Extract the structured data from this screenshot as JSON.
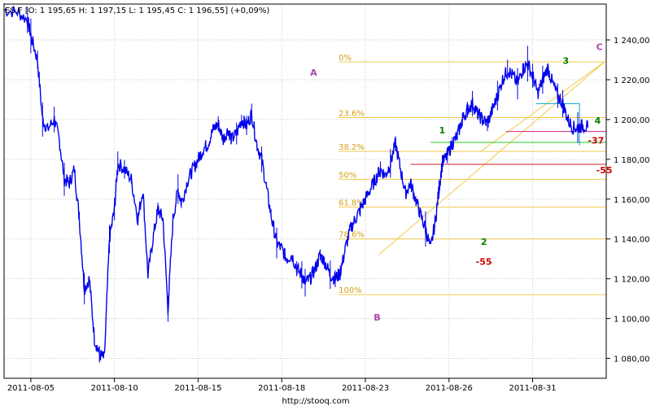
{
  "header": {
    "symbol": "ES.F",
    "text": "ES.F [O: 1 195,65  H: 1 197,15  L: 1 195,45  C: 1 196,55] (+0,09%)"
  },
  "footer": {
    "url": "http://stooq.com"
  },
  "colors": {
    "price": "#0000ee",
    "fib": "#f2c94c",
    "trend": "#f2c94c",
    "wave_green": "#008000",
    "wave_red": "#cc0000",
    "wave_purple": "#aa44aa",
    "green_line": "#22cc22",
    "red_line": "#cc2222",
    "cyan_line": "#00aacc",
    "magenta_line": "#cc2288",
    "grid": "#c8c8c8",
    "axis": "#000000"
  },
  "chart_data": {
    "type": "line",
    "x_axis": {
      "labels": [
        "2011-08-05",
        "2011-08-10",
        "2011-08-15",
        "2011-08-18",
        "2011-08-23",
        "2011-08-26",
        "2011-08-31"
      ]
    },
    "y_axis": {
      "labels": [
        "1 080,00",
        "1 100,00",
        "1 120,00",
        "1 140,00",
        "1 160,00",
        "1 180,00",
        "1 200,00",
        "1 220,00",
        "1 240,00"
      ],
      "values": [
        1080,
        1100,
        1120,
        1140,
        1160,
        1180,
        1200,
        1220,
        1240
      ],
      "ylim": [
        1070,
        1258
      ]
    },
    "grid": true,
    "series": [
      {
        "x": [
          0,
          0.8,
          1.4,
          1.6,
          2.0,
          2.3,
          2.6,
          3.0,
          3.3,
          3.6,
          3.9,
          4.2,
          4.5,
          4.8,
          5.1,
          5.4,
          5.7,
          6.0,
          6.3,
          6.6,
          6.8,
          7.2,
          7.6,
          8.0,
          8.3,
          8.6,
          8.9,
          9.2,
          9.5,
          9.8,
          10.1,
          10.4,
          10.6,
          11.0,
          11.3,
          11.6,
          11.9,
          12.2,
          12.5,
          12.8,
          13.1,
          13.4,
          13.6,
          13.9,
          14.2,
          14.5,
          14.8,
          15.1,
          15.4,
          15.7,
          16.0,
          16.3,
          16.6,
          16.9,
          17.2,
          17.5,
          17.8,
          18.0,
          18.3,
          18.6,
          18.9,
          19.2,
          19.5,
          19.8,
          20.1,
          20.4,
          20.7,
          21.0,
          21.3,
          21.6,
          21.9,
          22.2,
          22.5,
          22.8,
          23.1,
          23.4,
          23.7,
          24.0,
          24.3,
          24.6,
          24.9,
          25.2,
          25.5,
          25.8,
          26.0,
          26.2,
          26.5,
          26.8,
          27.1,
          27.4,
          27.7,
          28.0,
          28.3,
          28.6,
          28.9,
          29.2,
          29.5,
          29.8,
          30.1,
          30.4,
          30.7,
          31.0,
          31.3,
          31.6,
          31.9,
          32.2,
          32.5,
          32.8,
          33.1,
          33.4,
          33.7,
          34.0,
          34.3,
          34.6,
          34.9
        ],
        "y": [
          1255,
          1254,
          1250,
          1242,
          1230,
          1200,
          1195,
          1200,
          1190,
          1170,
          1168,
          1175,
          1150,
          1115,
          1120,
          1090,
          1082,
          1080,
          1140,
          1155,
          1178,
          1175,
          1170,
          1150,
          1165,
          1122,
          1140,
          1155,
          1150,
          1105,
          1150,
          1165,
          1158,
          1170,
          1175,
          1180,
          1185,
          1188,
          1195,
          1198,
          1190,
          1195,
          1190,
          1193,
          1200,
          1197,
          1203,
          1188,
          1180,
          1165,
          1150,
          1138,
          1135,
          1130,
          1132,
          1125,
          1122,
          1118,
          1120,
          1125,
          1132,
          1128,
          1122,
          1120,
          1123,
          1135,
          1145,
          1150,
          1155,
          1160,
          1165,
          1170,
          1175,
          1172,
          1178,
          1188,
          1175,
          1163,
          1168,
          1160,
          1152,
          1145,
          1135,
          1150,
          1165,
          1178,
          1182,
          1188,
          1192,
          1200,
          1205,
          1208,
          1203,
          1200,
          1198,
          1205,
          1212,
          1220,
          1225,
          1222,
          1218,
          1225,
          1228,
          1222,
          1213,
          1220,
          1226,
          1218,
          1212,
          1208,
          1200,
          1196,
          1196,
          1197,
          1196
        ]
      }
    ],
    "fibonacci": {
      "labels": [
        "0%",
        "23.6%",
        "38.2%",
        "50%",
        "61.8%",
        "78.6%",
        "100%"
      ],
      "levels": [
        1229,
        1201,
        1184,
        1170,
        1156,
        1140,
        1112
      ]
    },
    "annotations": {
      "waves_purple": [
        "A",
        "B",
        "C"
      ],
      "waves_green": [
        "1",
        "2",
        "3",
        "4"
      ],
      "red_labels": [
        "-55",
        "-55",
        "-37"
      ]
    }
  }
}
